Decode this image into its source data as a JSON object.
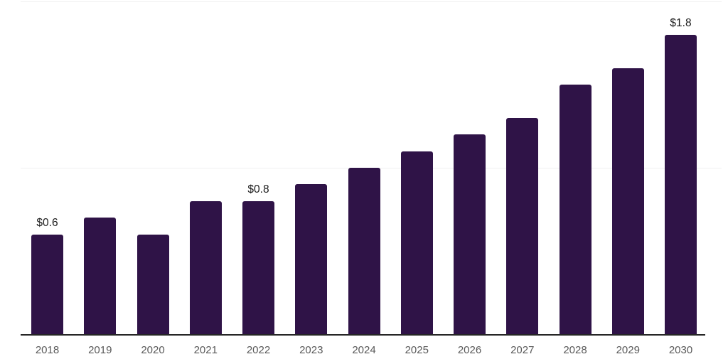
{
  "chart_data": {
    "type": "bar",
    "title": "",
    "xlabel": "",
    "ylabel": "",
    "categories": [
      "2018",
      "2019",
      "2020",
      "2021",
      "2022",
      "2023",
      "2024",
      "2025",
      "2026",
      "2027",
      "2028",
      "2029",
      "2030"
    ],
    "values": [
      0.6,
      0.7,
      0.6,
      0.8,
      0.8,
      0.9,
      1.0,
      1.1,
      1.2,
      1.3,
      1.5,
      1.6,
      1.8
    ],
    "bar_labels": {
      "2018": "$0.6",
      "2022": "$0.8",
      "2030": "$1.8"
    },
    "ylim": [
      0,
      2.0
    ],
    "gridline_values": [
      1.0,
      2.0
    ],
    "grid": "horizontal-faint",
    "legend": "none",
    "colors": {
      "bar": "#2f1347",
      "axis_line": "#262626",
      "gridline": "#f0f0f1",
      "x_tick_text": "#595959",
      "bar_label_text": "#1a1a1a",
      "background": "#ffffff"
    }
  }
}
